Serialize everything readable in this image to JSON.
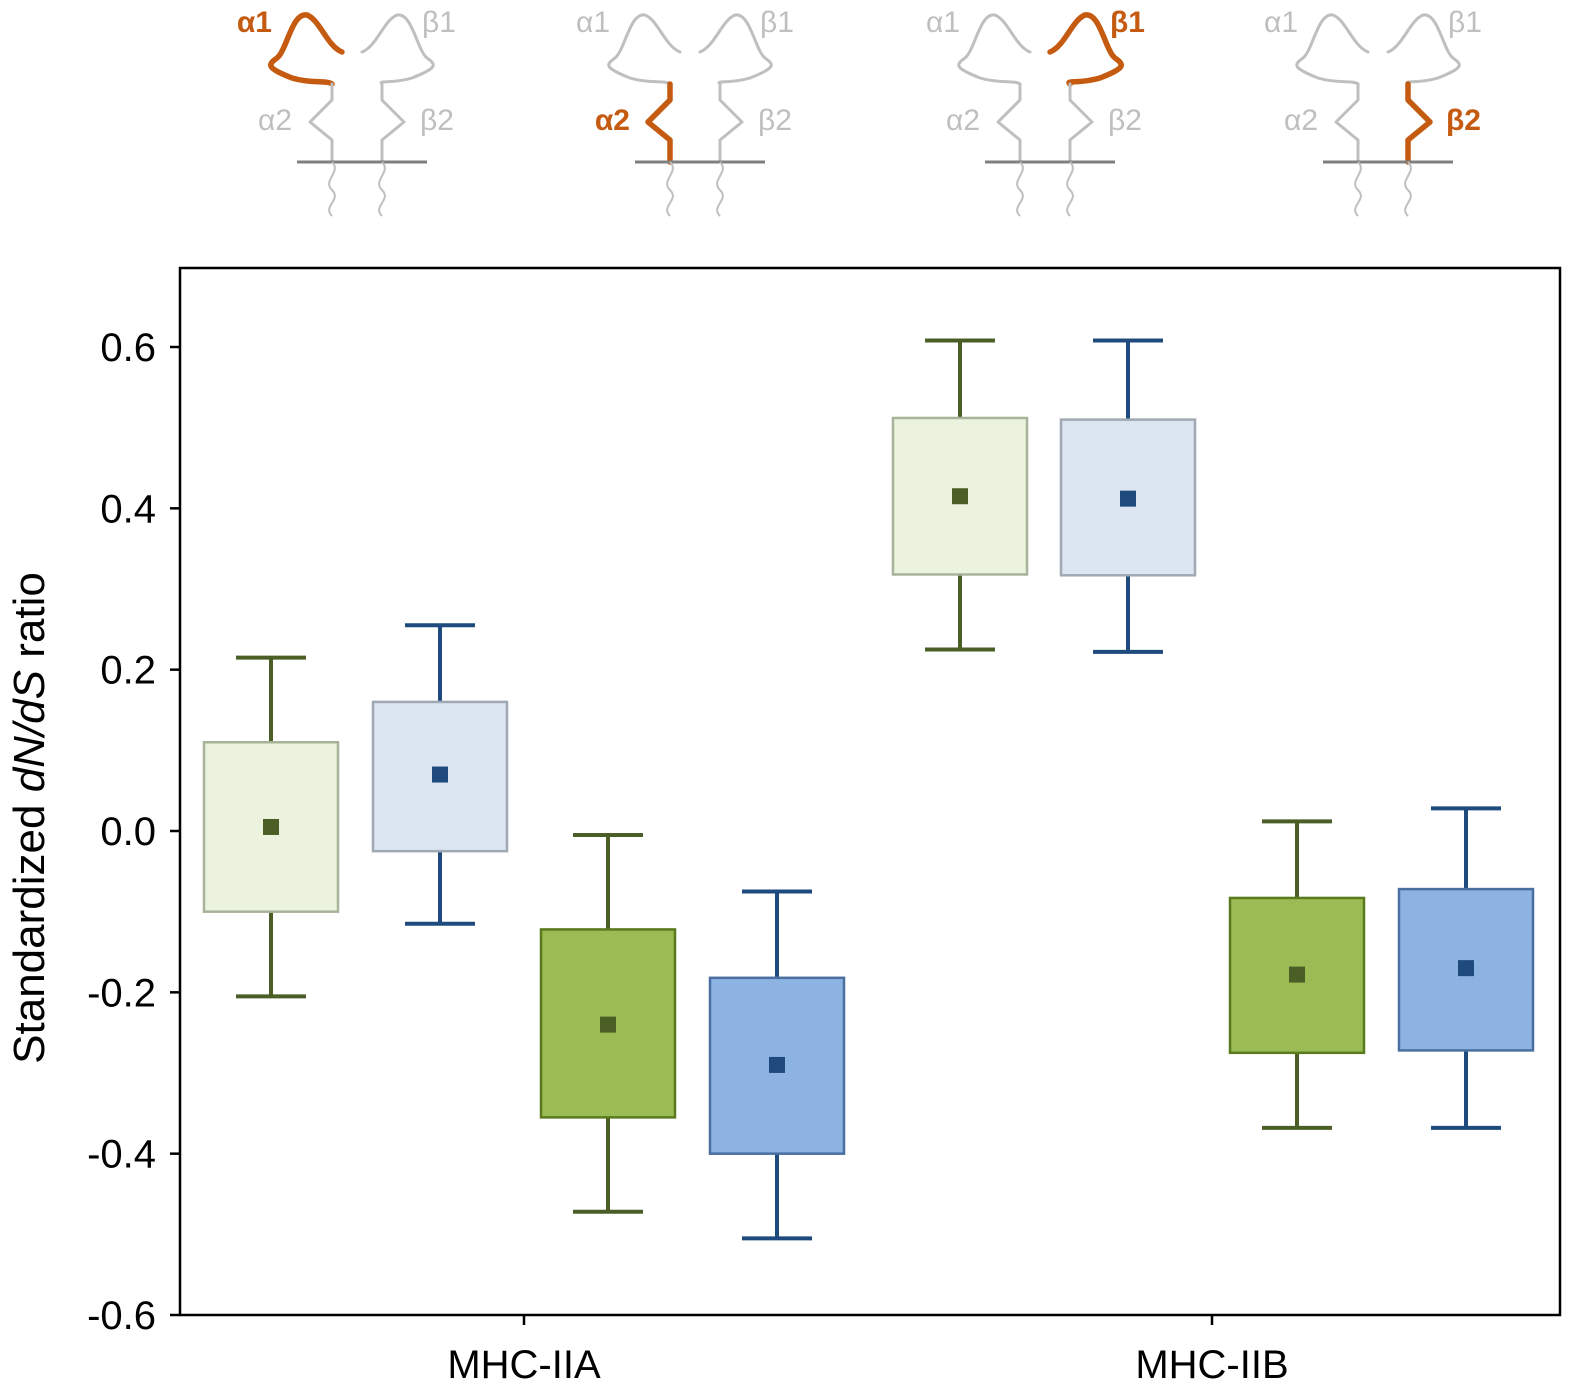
{
  "chart_data": {
    "type": "box",
    "ylabel_prefix": "Standardized ",
    "ylabel_italic": "dN/dS",
    "ylabel_suffix": " ratio",
    "ylim": [
      -0.6,
      0.7
    ],
    "yticks": [
      -0.6,
      -0.4,
      -0.2,
      0.0,
      0.2,
      0.4,
      0.6
    ],
    "ytick_labels": [
      "-0.6",
      "-0.4",
      "-0.2",
      "0.0",
      "0.2",
      "0.4",
      "0.6"
    ],
    "groups": [
      "MHC-IIA",
      "MHC-IIB"
    ],
    "series": [
      {
        "name": "α1 (MHC-IIA)",
        "domain": "α1",
        "group": "MHC-IIA",
        "color": "green",
        "shade": "light",
        "mean": 0.005,
        "box_low": -0.1,
        "box_high": 0.11,
        "whisker_low": -0.205,
        "whisker_high": 0.215
      },
      {
        "name": "β1 (MHC-IIA)",
        "domain": "β1",
        "group": "MHC-IIA",
        "color": "blue",
        "shade": "light",
        "mean": 0.07,
        "box_low": -0.025,
        "box_high": 0.16,
        "whisker_low": -0.115,
        "whisker_high": 0.255
      },
      {
        "name": "α2 (MHC-IIA)",
        "domain": "α2",
        "group": "MHC-IIA",
        "color": "green",
        "shade": "dark",
        "mean": -0.24,
        "box_low": -0.355,
        "box_high": -0.122,
        "whisker_low": -0.472,
        "whisker_high": -0.005
      },
      {
        "name": "β2 (MHC-IIA)",
        "domain": "β2",
        "group": "MHC-IIA",
        "color": "blue",
        "shade": "dark",
        "mean": -0.29,
        "box_low": -0.4,
        "box_high": -0.182,
        "whisker_low": -0.505,
        "whisker_high": -0.075
      },
      {
        "name": "α1 (MHC-IIB)",
        "domain": "α1",
        "group": "MHC-IIB",
        "color": "green",
        "shade": "light",
        "mean": 0.415,
        "box_low": 0.318,
        "box_high": 0.512,
        "whisker_low": 0.225,
        "whisker_high": 0.608
      },
      {
        "name": "β1 (MHC-IIB)",
        "domain": "β1",
        "group": "MHC-IIB",
        "color": "blue",
        "shade": "light",
        "mean": 0.412,
        "box_low": 0.317,
        "box_high": 0.51,
        "whisker_low": 0.222,
        "whisker_high": 0.608
      },
      {
        "name": "α2 (MHC-IIB)",
        "domain": "α2",
        "group": "MHC-IIB",
        "color": "green",
        "shade": "dark",
        "mean": -0.178,
        "box_low": -0.275,
        "box_high": -0.083,
        "whisker_low": -0.368,
        "whisker_high": 0.012
      },
      {
        "name": "β2 (MHC-IIB)",
        "domain": "β2",
        "group": "MHC-IIB",
        "color": "blue",
        "shade": "dark",
        "mean": -0.17,
        "box_low": -0.272,
        "box_high": -0.072,
        "whisker_low": -0.368,
        "whisker_high": 0.028
      }
    ],
    "legend_icons": [
      {
        "highlight": "α1",
        "labels": [
          "α1",
          "β1",
          "α2",
          "β2"
        ]
      },
      {
        "highlight": "α2",
        "labels": [
          "α1",
          "β1",
          "α2",
          "β2"
        ]
      },
      {
        "highlight": "β1",
        "labels": [
          "α1",
          "β1",
          "α2",
          "β2"
        ]
      },
      {
        "highlight": "β2",
        "labels": [
          "α1",
          "β1",
          "α2",
          "β2"
        ]
      }
    ]
  },
  "colors": {
    "green_whisker": "#4a5e25",
    "green_light_fill": "#ebf3de",
    "green_light_stroke": "#a8b39a",
    "green_dark_fill": "#9bbb55",
    "green_dark_stroke": "#5a7a1e",
    "blue_whisker": "#1f4a7e",
    "blue_light_fill": "#dce6f2",
    "blue_light_stroke": "#a0a8b2",
    "blue_dark_fill": "#8db3e2",
    "blue_dark_stroke": "#4a6fa0",
    "highlight": "#c55a11",
    "inactive": "#bfbfbf",
    "membrane": "#7f7f7f"
  }
}
